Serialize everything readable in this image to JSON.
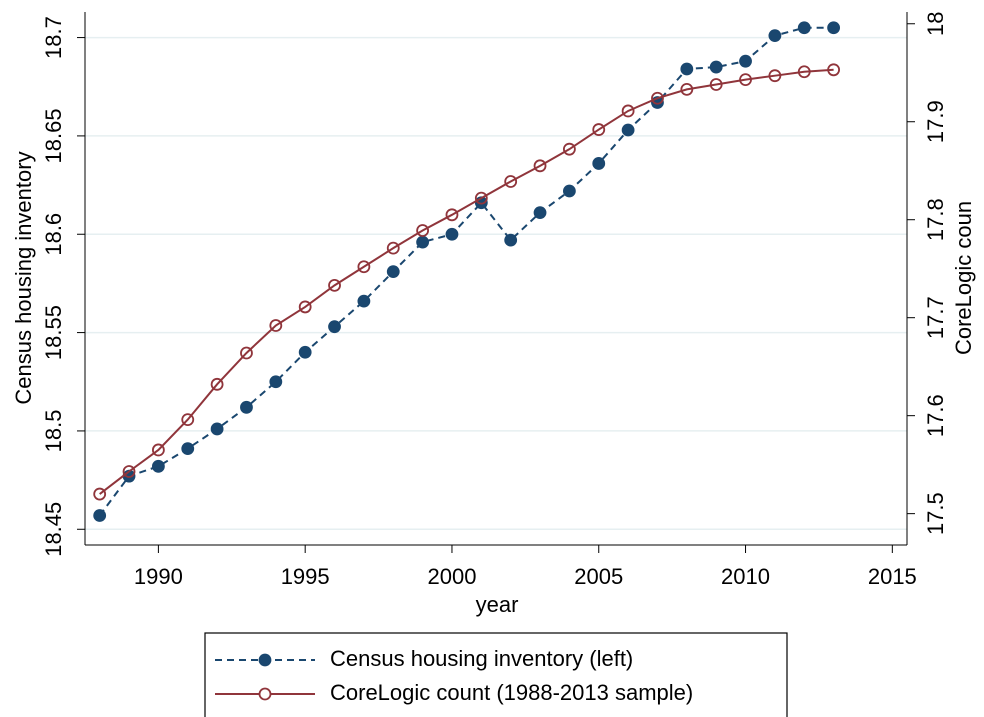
{
  "chart_data": {
    "type": "line",
    "x_label": "year",
    "y_label": "Census housing inventory",
    "y2_label": "CoreLogic coun",
    "x": [
      1988,
      1989,
      1990,
      1991,
      1992,
      1993,
      1994,
      1995,
      1996,
      1997,
      1998,
      1999,
      2000,
      2001,
      2002,
      2003,
      2004,
      2005,
      2006,
      2007,
      2008,
      2009,
      2010,
      2011,
      2012,
      2013
    ],
    "series": [
      {
        "name": "Census housing inventory (left)",
        "color": "#1a476f",
        "dash": true,
        "marker": "filled",
        "values": [
          18.457,
          18.477,
          18.482,
          18.491,
          18.501,
          18.512,
          18.525,
          18.54,
          18.553,
          18.566,
          18.581,
          18.596,
          18.6,
          18.616,
          18.597,
          18.611,
          18.622,
          18.636,
          18.653,
          18.667,
          18.684,
          18.685,
          18.688,
          18.701,
          18.705,
          18.705
        ]
      },
      {
        "name": "CoreLogic count (1988-2013 sample)",
        "color": "#90353b",
        "dash": false,
        "marker": "hollow",
        "axis": "y2",
        "values": [
          17.52,
          17.543,
          17.565,
          17.596,
          17.632,
          17.664,
          17.692,
          17.711,
          17.733,
          17.752,
          17.771,
          17.789,
          17.805,
          17.822,
          17.839,
          17.855,
          17.872,
          17.892,
          17.911,
          17.924,
          17.933,
          17.938,
          17.943,
          17.947,
          17.951,
          17.953
        ]
      }
    ],
    "xlim": [
      1987.5,
      2015.5
    ],
    "xticks": [
      1990,
      1995,
      2000,
      2005,
      2010,
      2015
    ],
    "ylim": [
      18.442,
      18.713
    ],
    "yticks": [
      18.45,
      18.5,
      18.55,
      18.6,
      18.65,
      18.7
    ],
    "y2lim": [
      17.468,
      18.012
    ],
    "y2ticks": [
      17.5,
      17.6,
      17.7,
      17.8,
      17.9,
      18
    ],
    "grid": true,
    "legend": "bottom"
  }
}
